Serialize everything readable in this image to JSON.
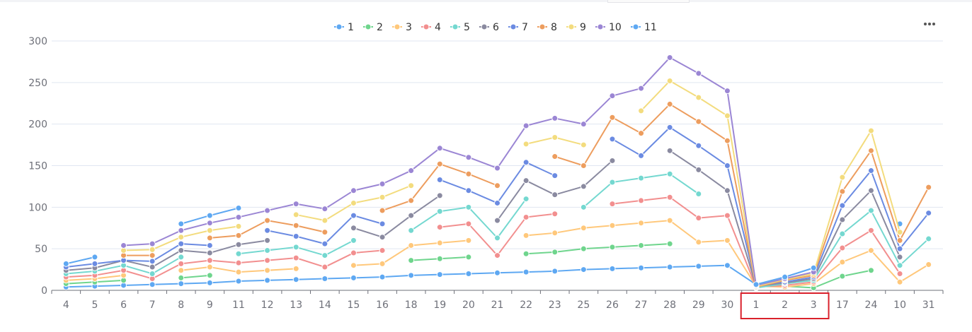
{
  "toolbar": {
    "more_icon": "more-horizontal-icon"
  },
  "chart_data": {
    "type": "line",
    "categories": [
      "4",
      "5",
      "6",
      "7",
      "8",
      "9",
      "11",
      "12",
      "13",
      "14",
      "15",
      "16",
      "18",
      "19",
      "20",
      "21",
      "22",
      "23",
      "25",
      "26",
      "27",
      "28",
      "29",
      "30",
      "1",
      "2",
      "3",
      "17",
      "24",
      "10",
      "31"
    ],
    "ylim": [
      0,
      300
    ],
    "yticks": [
      0,
      50,
      100,
      150,
      200,
      250,
      300
    ],
    "grid": true,
    "legend_position": "top-center",
    "highlight_box_categories": [
      "1",
      "2",
      "3"
    ],
    "highlight_color": "#d9212c",
    "series": [
      {
        "name": "1",
        "color": "#5ea8f2",
        "values": [
          4,
          5,
          6,
          7,
          8,
          9,
          11,
          12,
          13,
          14,
          15,
          16,
          18,
          19,
          20,
          21,
          22,
          23,
          25,
          26,
          27,
          28,
          29,
          30,
          7,
          16,
          27,
          null,
          null,
          80,
          null
        ]
      },
      {
        "name": "2",
        "color": "#6fd58d",
        "values": [
          8,
          10,
          12,
          null,
          15,
          18,
          null,
          null,
          null,
          null,
          null,
          null,
          36,
          38,
          40,
          null,
          44,
          46,
          50,
          52,
          54,
          56,
          null,
          null,
          6,
          5,
          3,
          17,
          24,
          null,
          null
        ]
      },
      {
        "name": "3",
        "color": "#ffc87b",
        "values": [
          12,
          14,
          18,
          null,
          24,
          28,
          22,
          24,
          26,
          null,
          30,
          32,
          54,
          57,
          60,
          null,
          66,
          69,
          75,
          78,
          81,
          84,
          58,
          60,
          5,
          4,
          8,
          34,
          48,
          10,
          31
        ]
      },
      {
        "name": "4",
        "color": "#f28f8f",
        "values": [
          16,
          18,
          24,
          14,
          32,
          36,
          33,
          36,
          39,
          28,
          45,
          48,
          null,
          76,
          80,
          42,
          88,
          92,
          null,
          104,
          108,
          112,
          87,
          90,
          4,
          6,
          10,
          51,
          72,
          20,
          null
        ]
      },
      {
        "name": "5",
        "color": "#74d8d0",
        "values": [
          20,
          23,
          30,
          20,
          40,
          null,
          44,
          48,
          52,
          42,
          60,
          null,
          72,
          95,
          100,
          63,
          110,
          null,
          100,
          130,
          135,
          140,
          116,
          null,
          3,
          8,
          12,
          68,
          96,
          30,
          62
        ]
      },
      {
        "name": "6",
        "color": "#8a8aa0",
        "values": [
          24,
          27,
          36,
          28,
          48,
          45,
          55,
          60,
          null,
          null,
          75,
          64,
          90,
          114,
          null,
          84,
          132,
          115,
          125,
          156,
          null,
          168,
          145,
          120,
          5,
          9,
          14,
          85,
          120,
          40,
          null
        ]
      },
      {
        "name": "7",
        "color": "#6b8be2",
        "values": [
          28,
          32,
          36,
          35,
          56,
          54,
          null,
          72,
          65,
          56,
          90,
          80,
          null,
          133,
          120,
          105,
          154,
          138,
          null,
          182,
          162,
          196,
          174,
          150,
          6,
          10,
          16,
          102,
          144,
          50,
          93
        ]
      },
      {
        "name": "8",
        "color": "#ed9d5e",
        "values": [
          null,
          null,
          42,
          42,
          null,
          63,
          66,
          84,
          78,
          70,
          null,
          96,
          108,
          152,
          140,
          126,
          null,
          161,
          150,
          208,
          189,
          224,
          203,
          180,
          4,
          12,
          18,
          119,
          168,
          60,
          124
        ]
      },
      {
        "name": "9",
        "color": "#f3dc7e",
        "values": [
          null,
          null,
          48,
          49,
          64,
          72,
          77,
          null,
          91,
          84,
          105,
          112,
          126,
          null,
          null,
          null,
          176,
          184,
          175,
          null,
          216,
          252,
          232,
          210,
          5,
          13,
          20,
          136,
          192,
          70,
          null
        ]
      },
      {
        "name": "10",
        "color": "#9b86d4",
        "values": [
          null,
          null,
          54,
          56,
          72,
          81,
          88,
          96,
          104,
          98,
          120,
          128,
          144,
          171,
          160,
          147,
          198,
          207,
          200,
          234,
          243,
          280,
          261,
          240,
          6,
          14,
          22,
          null,
          null,
          null,
          null
        ]
      },
      {
        "name": "11",
        "color": "#5ea8f2",
        "values": [
          32,
          40,
          null,
          null,
          80,
          90,
          99,
          null,
          null,
          null,
          null,
          null,
          null,
          null,
          null,
          null,
          null,
          null,
          null,
          null,
          null,
          null,
          null,
          null,
          7,
          16,
          27,
          null,
          null,
          null,
          null
        ]
      }
    ]
  }
}
